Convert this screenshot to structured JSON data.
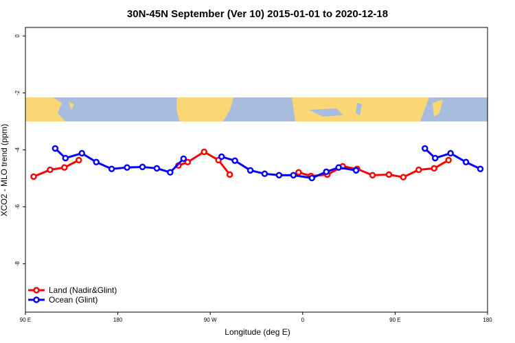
{
  "chart_data": {
    "type": "line",
    "title": "30N-45N September (Ver 10)   2015-01-01 to 2020-12-18",
    "x_label": "Longitude (deg E)",
    "y_label": "XCO2 - MLO trend (ppm)",
    "xlim": [
      90,
      540
    ],
    "xticks": [
      {
        "value": 90,
        "label": "90 E"
      },
      {
        "value": 180,
        "label": "180"
      },
      {
        "value": 270,
        "label": "90 W"
      },
      {
        "value": 360,
        "label": "0"
      },
      {
        "value": 450,
        "label": "90 E"
      },
      {
        "value": 540,
        "label": "180"
      }
    ],
    "ylim": [
      -9.7,
      0.3
    ],
    "yticks": [
      0,
      -2,
      -4,
      -6,
      -8
    ],
    "legend": "bottom-left",
    "series": [
      {
        "name": "Land (Nadir&Glint)",
        "color": "#ff0000",
        "x": [
          98,
          114,
          128,
          142,
          null,
          239,
          248,
          264,
          278,
          289,
          null,
          356,
          368,
          384,
          399,
          413,
          428,
          444,
          458,
          473,
          488,
          502
        ],
        "values": [
          -4.94,
          -4.7,
          -4.62,
          -4.36,
          null,
          -4.55,
          -4.43,
          -4.07,
          -4.36,
          -4.87,
          null,
          -4.79,
          -4.92,
          -4.87,
          -4.58,
          -4.67,
          -4.89,
          -4.87,
          -4.96,
          -4.7,
          -4.65,
          -4.36
        ]
      },
      {
        "name": "Ocean (Glint)",
        "color": "#0000ff",
        "x": [
          119,
          129,
          145,
          159,
          174,
          189,
          204,
          218,
          231,
          244,
          null,
          281,
          294,
          309,
          323,
          337,
          351,
          369,
          383,
          395,
          412,
          null,
          479,
          489,
          504,
          519,
          533
        ],
        "values": [
          -3.95,
          -4.29,
          -4.12,
          -4.43,
          -4.67,
          -4.62,
          -4.6,
          -4.65,
          -4.79,
          -4.31,
          null,
          -4.24,
          -4.38,
          -4.72,
          -4.84,
          -4.89,
          -4.89,
          -4.99,
          -4.77,
          -4.62,
          -4.72,
          null,
          -3.95,
          -4.29,
          -4.12,
          -4.43,
          -4.67
        ]
      }
    ]
  }
}
